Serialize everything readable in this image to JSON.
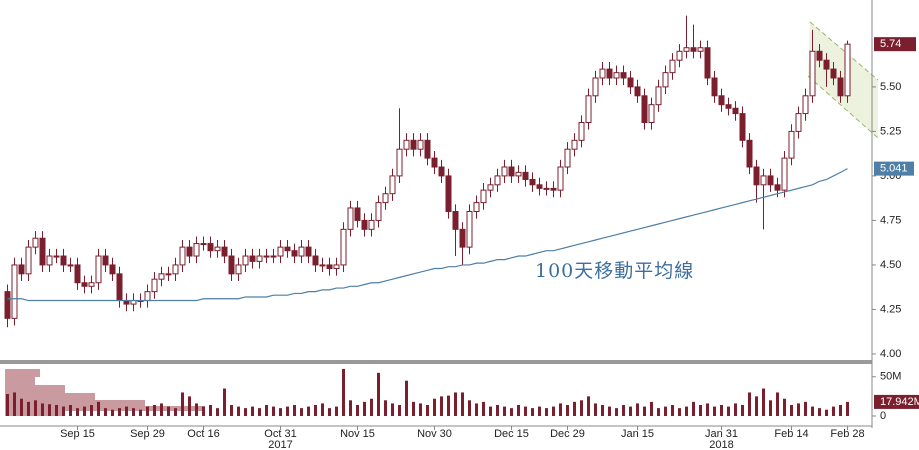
{
  "chart_data": {
    "type": "candlestick",
    "categories": [
      null,
      null,
      null,
      null,
      null,
      null,
      null,
      null,
      null,
      null,
      "Sep 15",
      null,
      null,
      null,
      null,
      null,
      null,
      null,
      null,
      null,
      "Sep 29",
      null,
      null,
      null,
      null,
      null,
      null,
      null,
      "Oct 16",
      null,
      null,
      null,
      null,
      null,
      null,
      null,
      null,
      null,
      null,
      "Oct 31",
      null,
      null,
      null,
      null,
      null,
      null,
      null,
      null,
      null,
      null,
      "Nov 15",
      null,
      null,
      null,
      null,
      null,
      null,
      null,
      null,
      null,
      null,
      "Nov 30",
      null,
      null,
      null,
      null,
      null,
      null,
      null,
      null,
      null,
      null,
      "Dec 15",
      null,
      null,
      null,
      null,
      null,
      null,
      null,
      "Dec 29",
      null,
      null,
      null,
      null,
      null,
      null,
      null,
      null,
      null,
      "Jan 15",
      null,
      null,
      null,
      null,
      null,
      null,
      null,
      null,
      null,
      null,
      null,
      "Jan 31",
      null,
      null,
      null,
      null,
      null,
      null,
      null,
      null,
      null,
      "Feb 14",
      null,
      null,
      null,
      null,
      null,
      null,
      null,
      "Feb 28"
    ],
    "years": [
      {
        "index": 39,
        "label": "2017"
      },
      {
        "index": 102,
        "label": "2018"
      }
    ],
    "open": [
      4.35,
      4.2,
      4.5,
      4.45,
      4.6,
      4.65,
      4.5,
      4.55,
      4.55,
      4.5,
      4.5,
      4.4,
      4.38,
      4.4,
      4.55,
      4.5,
      4.45,
      4.3,
      4.28,
      4.3,
      4.3,
      4.35,
      4.42,
      4.45,
      4.45,
      4.5,
      4.6,
      4.55,
      4.62,
      4.62,
      4.58,
      4.6,
      4.55,
      4.45,
      4.5,
      4.55,
      4.52,
      4.55,
      4.55,
      4.55,
      4.6,
      4.58,
      4.55,
      4.6,
      4.55,
      4.5,
      4.5,
      4.48,
      4.5,
      4.7,
      4.82,
      4.75,
      4.7,
      4.75,
      4.85,
      4.9,
      5.0,
      5.15,
      5.2,
      5.15,
      5.2,
      5.1,
      5.05,
      5.0,
      4.8,
      4.7,
      4.6,
      4.8,
      4.85,
      4.92,
      4.95,
      5.0,
      5.05,
      5.0,
      5.02,
      4.98,
      4.95,
      4.93,
      4.93,
      4.92,
      5.05,
      5.15,
      5.2,
      5.3,
      5.45,
      5.55,
      5.6,
      5.55,
      5.58,
      5.55,
      5.5,
      5.45,
      5.3,
      5.4,
      5.5,
      5.58,
      5.65,
      5.7,
      5.72,
      5.7,
      5.72,
      5.55,
      5.45,
      5.4,
      5.38,
      5.35,
      5.2,
      5.05,
      4.95,
      5.0,
      4.95,
      4.92,
      5.1,
      5.25,
      5.35,
      5.45,
      5.7,
      5.65,
      5.6,
      5.55,
      5.45
    ],
    "high": [
      4.39,
      4.54,
      4.54,
      4.64,
      4.69,
      4.69,
      4.59,
      4.59,
      4.59,
      4.54,
      4.54,
      4.44,
      4.44,
      4.59,
      4.59,
      4.54,
      4.49,
      4.34,
      4.34,
      4.34,
      4.39,
      4.46,
      4.49,
      4.49,
      4.54,
      4.64,
      4.64,
      4.66,
      4.66,
      4.66,
      4.64,
      4.64,
      4.59,
      4.54,
      4.59,
      4.59,
      4.59,
      4.59,
      4.59,
      4.64,
      4.64,
      4.62,
      4.64,
      4.64,
      4.59,
      4.54,
      4.54,
      4.54,
      4.74,
      4.86,
      4.86,
      4.79,
      4.79,
      4.89,
      4.94,
      5.04,
      5.38,
      5.24,
      5.24,
      5.24,
      5.24,
      5.14,
      5.09,
      5.04,
      4.84,
      4.74,
      4.84,
      4.89,
      4.96,
      4.99,
      5.04,
      5.09,
      5.09,
      5.06,
      5.06,
      5.02,
      4.99,
      4.97,
      4.97,
      5.09,
      5.19,
      5.24,
      5.34,
      5.49,
      5.59,
      5.64,
      5.64,
      5.62,
      5.62,
      5.59,
      5.54,
      5.49,
      5.44,
      5.54,
      5.62,
      5.69,
      5.74,
      5.9,
      5.85,
      5.76,
      5.76,
      5.59,
      5.49,
      5.44,
      5.42,
      5.39,
      5.24,
      5.09,
      5.04,
      5.04,
      4.99,
      5.14,
      5.29,
      5.39,
      5.49,
      5.82,
      5.74,
      5.69,
      5.64,
      5.59,
      5.76
    ],
    "low": [
      4.15,
      4.16,
      4.41,
      4.41,
      4.56,
      4.46,
      4.46,
      4.51,
      4.46,
      4.46,
      4.36,
      4.34,
      4.34,
      4.36,
      4.46,
      4.41,
      4.26,
      4.24,
      4.24,
      4.26,
      4.26,
      4.31,
      4.38,
      4.41,
      4.41,
      4.46,
      4.51,
      4.51,
      4.58,
      4.54,
      4.54,
      4.51,
      4.41,
      4.41,
      4.46,
      4.48,
      4.48,
      4.51,
      4.51,
      4.51,
      4.54,
      4.51,
      4.51,
      4.51,
      4.46,
      4.46,
      4.44,
      4.44,
      4.46,
      4.66,
      4.71,
      4.66,
      4.66,
      4.71,
      4.81,
      4.86,
      4.96,
      5.11,
      5.11,
      5.11,
      5.06,
      5.01,
      4.96,
      4.76,
      4.55,
      4.5,
      4.56,
      4.76,
      4.81,
      4.88,
      4.91,
      4.96,
      4.96,
      4.96,
      4.94,
      4.91,
      4.89,
      4.89,
      4.88,
      4.88,
      5.01,
      5.11,
      5.16,
      5.26,
      5.41,
      5.51,
      5.51,
      5.51,
      5.51,
      5.46,
      5.41,
      5.26,
      5.26,
      5.36,
      5.46,
      5.54,
      5.61,
      5.66,
      5.66,
      5.66,
      5.51,
      5.41,
      5.36,
      5.34,
      5.31,
      5.16,
      5.01,
      4.85,
      4.7,
      4.91,
      4.88,
      4.88,
      5.06,
      5.21,
      5.31,
      5.41,
      5.61,
      5.5,
      5.51,
      5.41,
      5.41
    ],
    "close": [
      4.2,
      4.5,
      4.45,
      4.6,
      4.65,
      4.5,
      4.55,
      4.55,
      4.5,
      4.5,
      4.4,
      4.38,
      4.4,
      4.55,
      4.5,
      4.45,
      4.3,
      4.28,
      4.3,
      4.3,
      4.35,
      4.42,
      4.45,
      4.45,
      4.5,
      4.6,
      4.55,
      4.62,
      4.62,
      4.58,
      4.6,
      4.55,
      4.45,
      4.5,
      4.55,
      4.52,
      4.55,
      4.55,
      4.55,
      4.6,
      4.58,
      4.55,
      4.6,
      4.55,
      4.5,
      4.5,
      4.48,
      4.5,
      4.7,
      4.82,
      4.75,
      4.7,
      4.75,
      4.85,
      4.9,
      5.0,
      5.15,
      5.2,
      5.15,
      5.2,
      5.1,
      5.05,
      5.0,
      4.8,
      4.7,
      4.6,
      4.8,
      4.85,
      4.92,
      4.95,
      5.0,
      5.05,
      5.0,
      5.02,
      4.98,
      4.95,
      4.93,
      4.93,
      4.92,
      5.05,
      5.15,
      5.2,
      5.3,
      5.45,
      5.55,
      5.6,
      5.55,
      5.58,
      5.55,
      5.5,
      5.45,
      5.3,
      5.4,
      5.5,
      5.58,
      5.65,
      5.7,
      5.72,
      5.7,
      5.72,
      5.55,
      5.45,
      5.4,
      5.38,
      5.35,
      5.2,
      5.05,
      4.95,
      5.0,
      4.95,
      4.92,
      5.1,
      5.25,
      5.35,
      5.45,
      5.7,
      5.65,
      5.6,
      5.55,
      5.45,
      5.74
    ],
    "color": "#7b1f2e",
    "ylim": [
      3.966,
      5.96
    ],
    "yticks": [
      {
        "value": 4,
        "label": "4.00"
      },
      4.25,
      {
        "value": 4.5,
        "label": "4.50"
      },
      4.75,
      {
        "value": 5,
        "label": "5.00"
      },
      5.25,
      {
        "value": 5.5,
        "label": "5.50"
      }
    ],
    "moving_average": {
      "name": "100天移動平均線",
      "color": "#4f7fa6",
      "values": [
        4.31,
        4.31,
        4.31,
        4.3,
        4.3,
        4.3,
        4.3,
        4.3,
        4.3,
        4.3,
        4.3,
        4.3,
        4.3,
        4.3,
        4.3,
        4.3,
        4.3,
        4.3,
        4.3,
        4.3,
        4.3,
        4.3,
        4.3,
        4.3,
        4.3,
        4.3,
        4.3,
        4.3,
        4.31,
        4.31,
        4.31,
        4.31,
        4.31,
        4.31,
        4.32,
        4.32,
        4.32,
        4.32,
        4.33,
        4.33,
        4.33,
        4.34,
        4.34,
        4.35,
        4.35,
        4.36,
        4.36,
        4.37,
        4.37,
        4.38,
        4.38,
        4.39,
        4.4,
        4.4,
        4.41,
        4.42,
        4.43,
        4.44,
        4.45,
        4.46,
        4.47,
        4.48,
        4.48,
        4.49,
        4.49,
        4.5,
        4.5,
        4.51,
        4.51,
        4.52,
        4.53,
        4.53,
        4.54,
        4.55,
        4.55,
        4.56,
        4.57,
        4.58,
        4.58,
        4.59,
        4.6,
        4.61,
        4.62,
        4.63,
        4.64,
        4.65,
        4.66,
        4.67,
        4.68,
        4.69,
        4.7,
        4.71,
        4.72,
        4.73,
        4.74,
        4.75,
        4.76,
        4.77,
        4.78,
        4.79,
        4.8,
        4.81,
        4.82,
        4.83,
        4.84,
        4.85,
        4.86,
        4.87,
        4.88,
        4.89,
        4.9,
        4.91,
        4.92,
        4.93,
        4.94,
        4.95,
        4.97,
        4.98,
        5.0,
        5.02,
        5.041
      ]
    },
    "volume": {
      "color": "#7b1f2e",
      "ylim": [
        -11.5,
        65
      ],
      "yticks": [
        0,
        {
          "value": 50,
          "label": "50M"
        }
      ],
      "last_label": "17.942M",
      "values": [
        28,
        30,
        22,
        18,
        20,
        16,
        15,
        14,
        12,
        14,
        10,
        12,
        14,
        18,
        10,
        8,
        10,
        12,
        10,
        8,
        12,
        14,
        16,
        12,
        10,
        30,
        25,
        16,
        12,
        14,
        10,
        35,
        14,
        12,
        10,
        12,
        10,
        14,
        12,
        10,
        12,
        14,
        10,
        12,
        14,
        16,
        10,
        12,
        60,
        20,
        14,
        18,
        22,
        55,
        20,
        16,
        14,
        45,
        18,
        16,
        14,
        22,
        25,
        26,
        30,
        30,
        20,
        16,
        18,
        12,
        14,
        12,
        10,
        14,
        12,
        10,
        12,
        10,
        12,
        16,
        14,
        18,
        20,
        25,
        16,
        14,
        12,
        10,
        14,
        12,
        16,
        12,
        18,
        10,
        12,
        14,
        10,
        12,
        18,
        14,
        16,
        12,
        14,
        12,
        16,
        14,
        30,
        25,
        35,
        20,
        30,
        22,
        14,
        16,
        18,
        12,
        10,
        8,
        12,
        14,
        17.942
      ]
    }
  }
}
